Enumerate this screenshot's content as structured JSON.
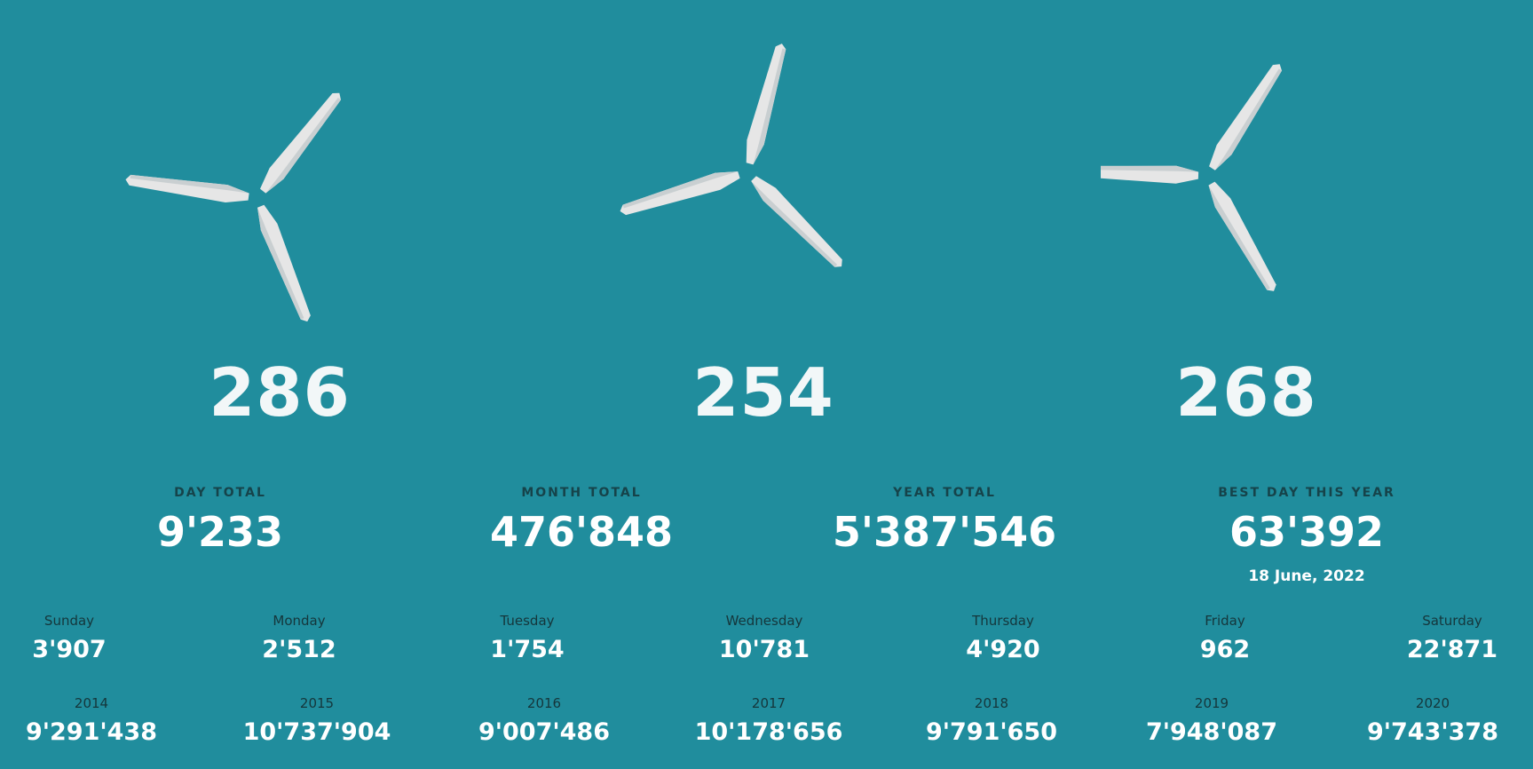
{
  "turbines": [
    {
      "value": "286"
    },
    {
      "value": "254"
    },
    {
      "value": "268"
    }
  ],
  "totals": {
    "day": {
      "label": "DAY TOTAL",
      "value": "9'233"
    },
    "month": {
      "label": "MONTH TOTAL",
      "value": "476'848"
    },
    "year": {
      "label": "YEAR TOTAL",
      "value": "5'387'546"
    },
    "best": {
      "label": "BEST DAY THIS YEAR",
      "value": "63'392",
      "date": "18 June, 2022"
    }
  },
  "weekdays": [
    {
      "label": "Sunday",
      "value": "3'907"
    },
    {
      "label": "Monday",
      "value": "2'512"
    },
    {
      "label": "Tuesday",
      "value": "1'754"
    },
    {
      "label": "Wednesday",
      "value": "10'781"
    },
    {
      "label": "Thursday",
      "value": "4'920"
    },
    {
      "label": "Friday",
      "value": "962"
    },
    {
      "label": "Saturday",
      "value": "22'871"
    }
  ],
  "years": [
    {
      "label": "2014",
      "value": "9'291'438"
    },
    {
      "label": "2015",
      "value": "10'737'904"
    },
    {
      "label": "2016",
      "value": "9'007'486"
    },
    {
      "label": "2017",
      "value": "10'178'656"
    },
    {
      "label": "2018",
      "value": "9'791'650"
    },
    {
      "label": "2019",
      "value": "7'948'087"
    },
    {
      "label": "2020",
      "value": "9'743'378"
    }
  ],
  "colors": {
    "background": "#208d9d",
    "blade": "#e6e6e6",
    "blade_shade": "#c9cfd1",
    "label_dark": "#15363b"
  }
}
